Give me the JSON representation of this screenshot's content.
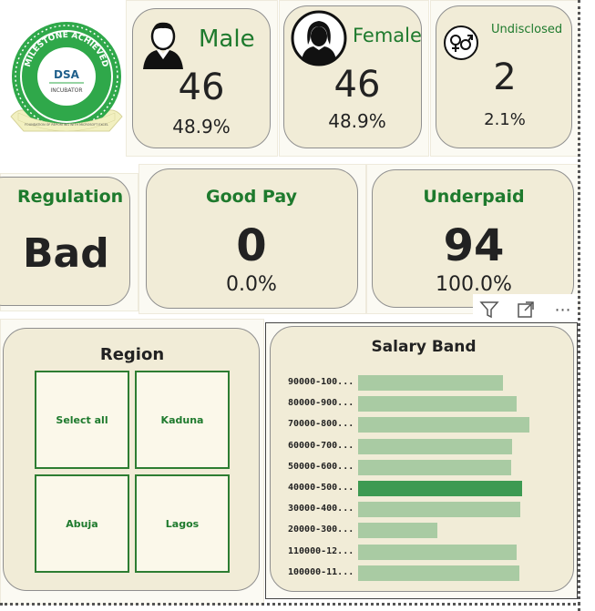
{
  "badge": {
    "top_text": "MILESTONE ACHIEVED",
    "logo": "DSA",
    "sub": "INCUBATOR",
    "ribbon": "FOUNDATION OF REPORTING WITH MICROSOFT EXCEL"
  },
  "gender": {
    "male": {
      "label": "Male",
      "count": "46",
      "pct": "48.9%",
      "icon": "male-avatar-icon"
    },
    "female": {
      "label": "Female",
      "count": "46",
      "pct": "48.9%",
      "icon": "female-avatar-icon"
    },
    "undisclosed": {
      "label": "Undisclosed",
      "count": "2",
      "pct": "2.1%",
      "icon": "gender-symbol-icon"
    }
  },
  "regulation": {
    "label": "Regulation",
    "value": "Bad"
  },
  "good_pay": {
    "label": "Good Pay",
    "count": "0",
    "pct": "0.0%"
  },
  "underpaid": {
    "label": "Underpaid",
    "count": "94",
    "pct": "100.0%"
  },
  "region": {
    "title": "Region",
    "options": [
      "Select all",
      "Kaduna",
      "Abuja",
      "Lagos"
    ]
  },
  "colors": {
    "accent_green": "#1e7a2d",
    "bar": "#a9cba3",
    "bar_highlight": "#3d9a52",
    "card_bg": "#f1ecd7"
  },
  "chart_data": {
    "type": "bar",
    "title": "Salary Band",
    "orientation": "horizontal",
    "categories": [
      "90000-100...",
      "80000-900...",
      "70000-800...",
      "60000-700...",
      "50000-600...",
      "40000-500...",
      "30000-400...",
      "20000-300...",
      "110000-12...",
      "100000-11..."
    ],
    "values": [
      11,
      12,
      13,
      11.7,
      11.6,
      12.4,
      12.3,
      6,
      12,
      12.2
    ],
    "highlight_index": 5,
    "xlim": [
      0,
      15
    ]
  }
}
